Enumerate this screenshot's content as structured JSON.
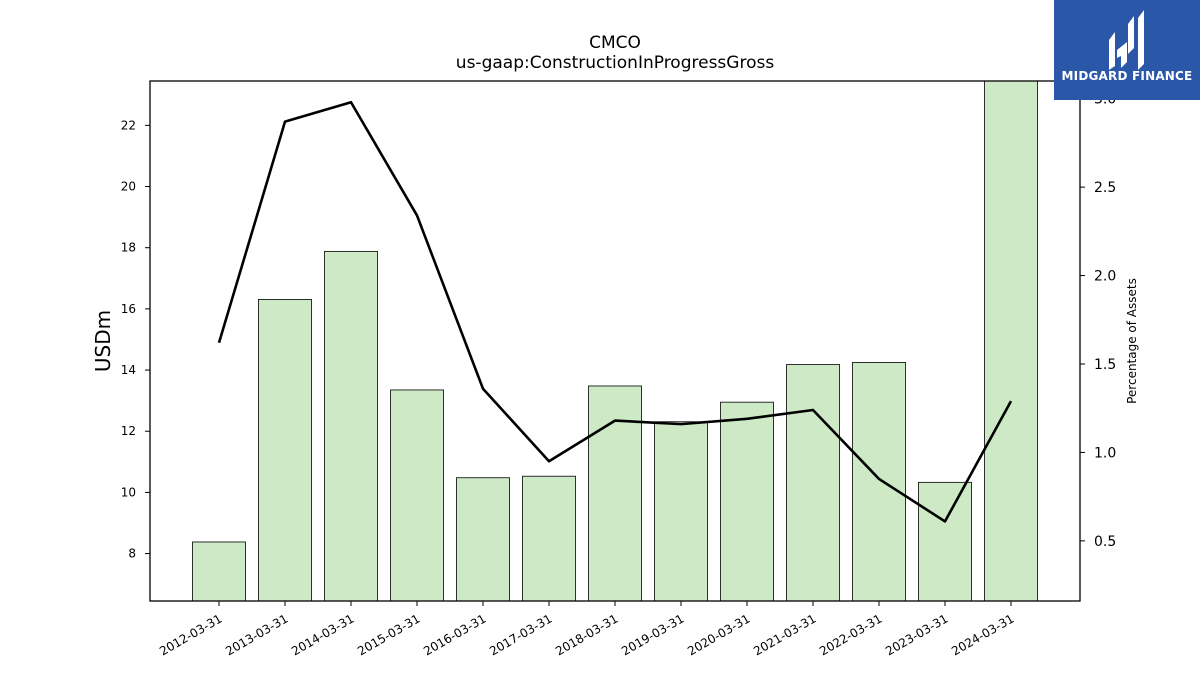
{
  "chart_data": {
    "type": "bar",
    "title": "CMCO",
    "subtitle": "us-gaap:ConstructionInProgressGross",
    "xlabel": "",
    "ylabel": "USDm",
    "y2label": "Percentage of Assets",
    "categories": [
      "2012-03-31",
      "2013-03-31",
      "2014-03-31",
      "2015-03-31",
      "2016-03-31",
      "2017-03-31",
      "2018-03-31",
      "2019-03-31",
      "2020-03-31",
      "2021-03-31",
      "2022-03-31",
      "2023-03-31",
      "2024-03-31"
    ],
    "series": [
      {
        "type": "bar",
        "axis": "left",
        "values": [
          8.38,
          16.31,
          17.88,
          13.35,
          10.48,
          10.53,
          13.48,
          12.31,
          12.95,
          14.18,
          14.25,
          10.33,
          23.8
        ]
      },
      {
        "type": "line",
        "axis": "right",
        "values": [
          1.62,
          2.87,
          2.98,
          2.34,
          1.36,
          0.95,
          1.18,
          1.16,
          1.19,
          1.24,
          0.85,
          0.61,
          1.29
        ]
      }
    ],
    "ylim": [
      6.45,
      23.45
    ],
    "y2lim": [
      0.16,
      3.1
    ],
    "yticks": [
      8,
      10,
      12,
      14,
      16,
      18,
      20,
      22
    ],
    "y2ticks": [
      0.5,
      1.0,
      1.5,
      2.0,
      2.5,
      3.0
    ],
    "bar_color": "#cde9c5",
    "bar_edge": "#000000",
    "line_color": "#000000",
    "grid": false,
    "legend": "none"
  },
  "logo": {
    "text": "MIDGARD FINANCE",
    "bg": "#2b57a8"
  }
}
